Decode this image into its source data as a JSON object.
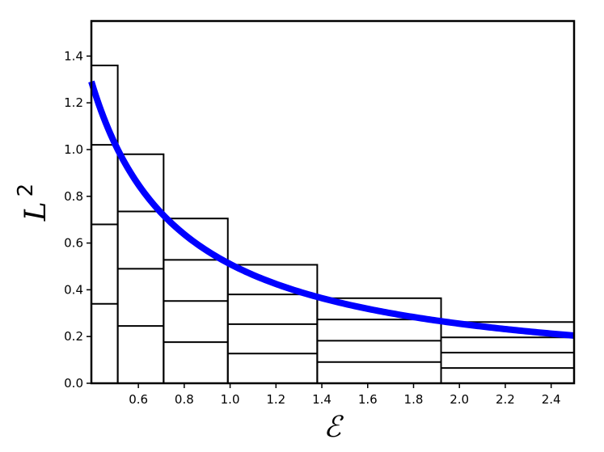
{
  "chart_data": {
    "type": "line",
    "title": "",
    "xlabel": "ℰ",
    "ylabel": "L",
    "ylabel_superscript": "2",
    "xlim": [
      0.395,
      2.5
    ],
    "ylim": [
      0.0,
      1.55
    ],
    "xticks": [
      0.6,
      0.8,
      1.0,
      1.2,
      1.4,
      1.6,
      1.8,
      2.0,
      2.2,
      2.4
    ],
    "xtick_labels": [
      "0.6",
      "0.8",
      "1.0",
      "1.2",
      "1.4",
      "1.6",
      "1.8",
      "2.0",
      "2.2",
      "2.4"
    ],
    "yticks": [
      0.0,
      0.2,
      0.4,
      0.6,
      0.8,
      1.0,
      1.2,
      1.4
    ],
    "ytick_labels": [
      "0.0",
      "0.2",
      "0.4",
      "0.6",
      "0.8",
      "1.0",
      "1.2",
      "1.4"
    ],
    "grid": false,
    "curve": {
      "description": "L^2 = 0.51 / E",
      "color": "#0000ff",
      "x": [
        0.395,
        0.45,
        0.5,
        0.55,
        0.6,
        0.65,
        0.7,
        0.8,
        0.9,
        1.0,
        1.1,
        1.2,
        1.3,
        1.4,
        1.5,
        1.6,
        1.7,
        1.8,
        1.9,
        2.0,
        2.1,
        2.2,
        2.3,
        2.4,
        2.5
      ],
      "y": [
        1.291,
        1.133,
        1.02,
        0.927,
        0.85,
        0.785,
        0.729,
        0.638,
        0.567,
        0.51,
        0.464,
        0.425,
        0.392,
        0.364,
        0.34,
        0.319,
        0.3,
        0.283,
        0.268,
        0.255,
        0.243,
        0.232,
        0.222,
        0.2125,
        0.204
      ]
    },
    "bins": [
      {
        "x0": 0.395,
        "x1": 0.51,
        "top": 1.36,
        "lines": [
          0.34,
          0.68,
          1.02
        ]
      },
      {
        "x0": 0.51,
        "x1": 0.71,
        "top": 0.98,
        "lines": [
          0.245,
          0.49,
          0.735
        ]
      },
      {
        "x0": 0.71,
        "x1": 0.99,
        "top": 0.705,
        "lines": [
          0.176,
          0.352,
          0.528
        ]
      },
      {
        "x0": 0.99,
        "x1": 1.38,
        "top": 0.507,
        "lines": [
          0.127,
          0.253,
          0.38
        ]
      },
      {
        "x0": 1.38,
        "x1": 1.92,
        "top": 0.364,
        "lines": [
          0.091,
          0.182,
          0.273
        ]
      },
      {
        "x0": 1.92,
        "x1": 2.5,
        "top": 0.262,
        "lines": [
          0.0655,
          0.131,
          0.1965
        ]
      }
    ]
  }
}
